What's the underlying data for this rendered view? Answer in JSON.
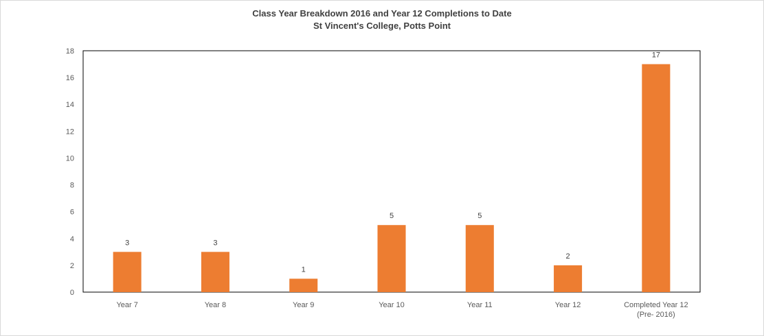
{
  "chart_data": {
    "type": "bar",
    "title": "Class Year Breakdown 2016 and Year 12 Completions to Date",
    "subtitle": "St Vincent's College, Potts Point",
    "categories": [
      [
        "Year 7"
      ],
      [
        "Year 8"
      ],
      [
        "Year 9"
      ],
      [
        "Year 10"
      ],
      [
        "Year 11"
      ],
      [
        "Year 12"
      ],
      [
        "Completed Year 12",
        "(Pre- 2016)"
      ]
    ],
    "values": [
      3,
      3,
      1,
      5,
      5,
      2,
      17
    ],
    "data_labels": [
      "3",
      "3",
      "1",
      "5",
      "5",
      "2",
      "17"
    ],
    "y_ticks": [
      0,
      2,
      4,
      6,
      8,
      10,
      12,
      14,
      16,
      18
    ],
    "ylim": [
      0,
      18
    ],
    "xlabel": "",
    "ylabel": "",
    "grid": false,
    "legend": "none",
    "bar_color": "#ED7D31"
  }
}
